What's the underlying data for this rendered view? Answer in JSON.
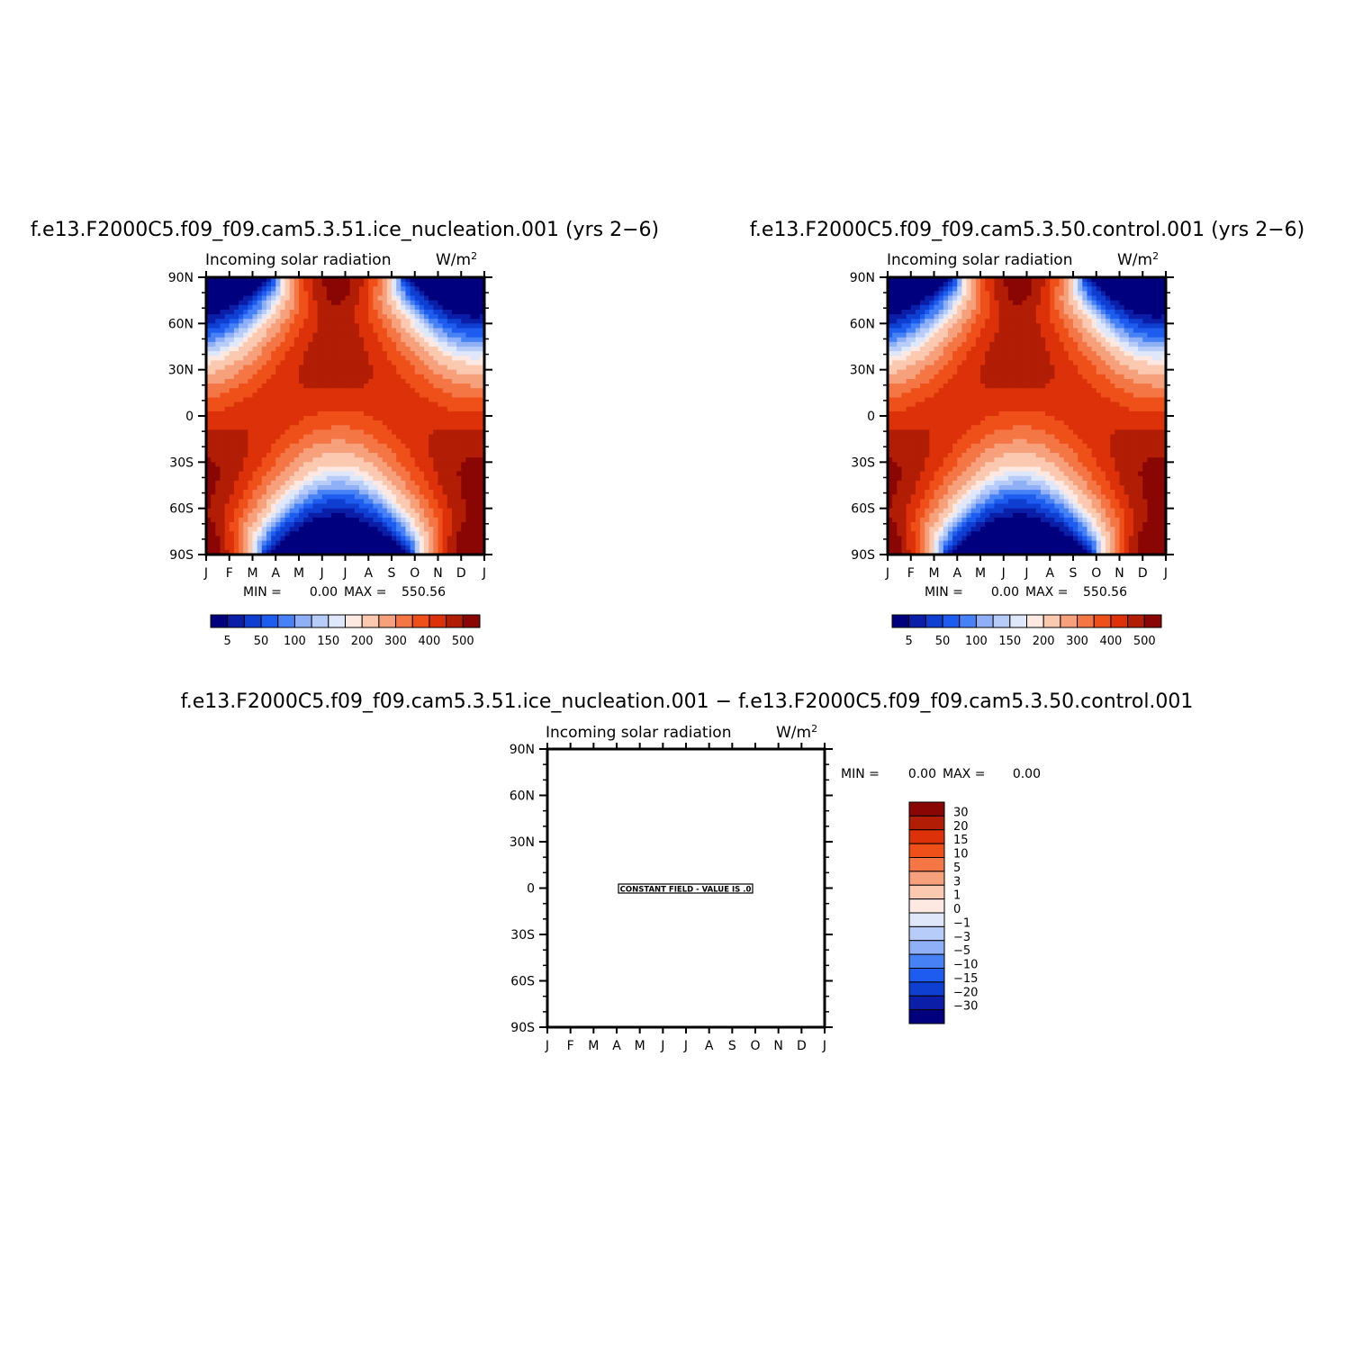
{
  "figure": {
    "units_label": "W/m",
    "units_exp": "2"
  },
  "colors": {
    "solar_palette": [
      "#00007f",
      "#0a1ea8",
      "#0f3fd1",
      "#1e5cf0",
      "#4681f5",
      "#8fb0f7",
      "#b7ccf8",
      "#dfe8fb",
      "#fde9e1",
      "#fbc8b0",
      "#f7a07c",
      "#f47645",
      "#ef5019",
      "#dc3109",
      "#b21d05",
      "#8a0604"
    ],
    "diff_palette": [
      "#00007f",
      "#0a1ea8",
      "#0f3fd1",
      "#1e5cf0",
      "#4681f5",
      "#8fb0f7",
      "#b7ccf8",
      "#dfe8fb",
      "#fde9e1",
      "#fbc8b0",
      "#f7a07c",
      "#f47645",
      "#ef5019",
      "#dc3109",
      "#b21d05",
      "#8a0604"
    ]
  },
  "chart_data": [
    {
      "type": "heatmap",
      "panel": "test",
      "title": "f.e13.F2000C5.f09_f09.cam5.3.51.ice_nucleation.001 (yrs 2−6)",
      "subtitle_left": "Incoming solar radiation",
      "units": "W/m2",
      "x_tick_labels": [
        "J",
        "F",
        "M",
        "A",
        "M",
        "J",
        "J",
        "A",
        "S",
        "O",
        "N",
        "D",
        "J"
      ],
      "y_tick_labels": [
        "90N",
        "60N",
        "30N",
        "0",
        "30S",
        "60S",
        "90S"
      ],
      "ylim": [
        -90,
        90
      ],
      "xlim": [
        0,
        12
      ],
      "min_text": "MIN =",
      "min_value": "0.00",
      "max_text": "MAX =",
      "max_value": "550.56",
      "min": 0.0,
      "max": 550.56,
      "colorbar_levels": [
        5,
        25,
        50,
        75,
        100,
        125,
        150,
        175,
        200,
        250,
        300,
        350,
        400,
        450,
        500
      ],
      "colorbar_tick_labels": [
        "5",
        "50",
        "100",
        "150",
        "200",
        "300",
        "400",
        "500"
      ],
      "field": "insolation"
    },
    {
      "type": "heatmap",
      "panel": "control",
      "title": "f.e13.F2000C5.f09_f09.cam5.3.50.control.001 (yrs 2−6)",
      "subtitle_left": "Incoming solar radiation",
      "units": "W/m2",
      "x_tick_labels": [
        "J",
        "F",
        "M",
        "A",
        "M",
        "J",
        "J",
        "A",
        "S",
        "O",
        "N",
        "D",
        "J"
      ],
      "y_tick_labels": [
        "90N",
        "60N",
        "30N",
        "0",
        "30S",
        "60S",
        "90S"
      ],
      "ylim": [
        -90,
        90
      ],
      "xlim": [
        0,
        12
      ],
      "min_text": "MIN =",
      "min_value": "0.00",
      "max_text": "MAX =",
      "max_value": "550.56",
      "min": 0.0,
      "max": 550.56,
      "colorbar_levels": [
        5,
        25,
        50,
        75,
        100,
        125,
        150,
        175,
        200,
        250,
        300,
        350,
        400,
        450,
        500
      ],
      "colorbar_tick_labels": [
        "5",
        "50",
        "100",
        "150",
        "200",
        "300",
        "400",
        "500"
      ],
      "field": "insolation"
    },
    {
      "type": "heatmap",
      "panel": "difference",
      "title": "f.e13.F2000C5.f09_f09.cam5.3.51.ice_nucleation.001 − f.e13.F2000C5.f09_f09.cam5.3.50.control.001",
      "subtitle_left": "Incoming solar radiation",
      "units": "W/m2",
      "x_tick_labels": [
        "J",
        "F",
        "M",
        "A",
        "M",
        "J",
        "J",
        "A",
        "S",
        "O",
        "N",
        "D",
        "J"
      ],
      "y_tick_labels": [
        "90N",
        "60N",
        "30N",
        "0",
        "30S",
        "60S",
        "90S"
      ],
      "ylim": [
        -90,
        90
      ],
      "xlim": [
        0,
        12
      ],
      "min_text": "MIN =",
      "min_value": "0.00",
      "max_text": "MAX =",
      "max_value": "0.00",
      "min": 0.0,
      "max": 0.0,
      "annotation": "CONSTANT FIELD - VALUE IS .0",
      "colorbar_levels": [
        -30,
        -20,
        -15,
        -10,
        -5,
        -3,
        -1,
        0,
        1,
        3,
        5,
        10,
        15,
        20,
        30
      ],
      "colorbar_tick_labels": [
        "30",
        "20",
        "15",
        "10",
        "5",
        "3",
        "1",
        "0",
        "−1",
        "−3",
        "−5",
        "−10",
        "−15",
        "−20",
        "−30"
      ],
      "field": "constant"
    }
  ]
}
